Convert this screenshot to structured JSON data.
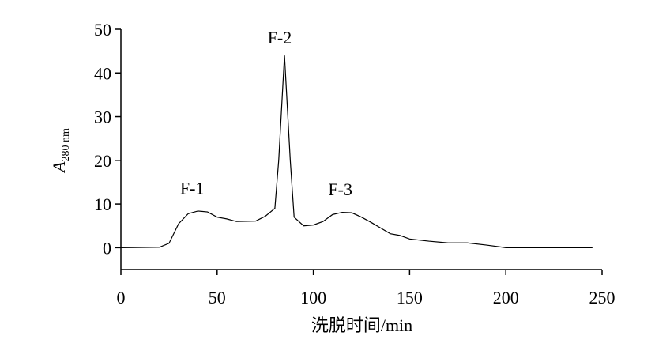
{
  "chart_data": {
    "type": "line",
    "xlabel": "洗脱时间/min",
    "ylabel": "A",
    "ylabel_sub": "280 nm",
    "x": [
      0,
      20,
      25,
      30,
      35,
      40,
      45,
      50,
      55,
      60,
      70,
      75,
      80,
      82,
      85,
      88,
      90,
      95,
      100,
      105,
      110,
      115,
      120,
      125,
      130,
      135,
      140,
      145,
      150,
      160,
      170,
      180,
      190,
      200,
      245
    ],
    "y": [
      0,
      0.1,
      1,
      5.5,
      7.8,
      8.4,
      8.2,
      7,
      6.6,
      6,
      6.1,
      7.2,
      9,
      20,
      44,
      20,
      7,
      5,
      5.2,
      6,
      7.6,
      8.1,
      8,
      7,
      5.8,
      4.5,
      3.2,
      2.8,
      2,
      1.5,
      1.1,
      1.1,
      0.6,
      0,
      0
    ],
    "color": "#000000",
    "xlim": [
      0,
      250
    ],
    "xticks": [
      0,
      50,
      100,
      150,
      200,
      250
    ],
    "ylim": [
      -5,
      50
    ],
    "yticks": [
      0,
      10,
      20,
      30,
      40,
      50
    ],
    "annotations": [
      {
        "text": "F-1",
        "x": 37,
        "y": 12.3
      },
      {
        "text": "F-2",
        "x": 82.5,
        "y": 46.7
      },
      {
        "text": "F-3",
        "x": 114,
        "y": 12
      }
    ]
  }
}
